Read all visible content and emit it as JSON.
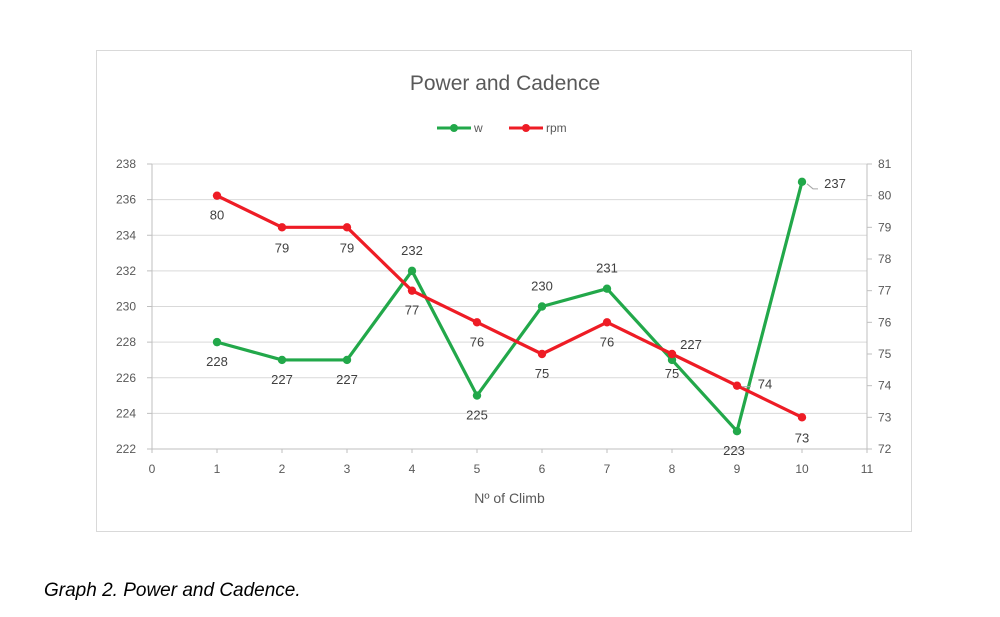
{
  "caption": "Graph 2. Power and Cadence.",
  "chart_data": {
    "type": "line",
    "title": "Power and Cadence",
    "xlabel": "Nº of Climb",
    "ylabel": "",
    "y2label": "",
    "xlim": [
      0,
      11
    ],
    "xticks": [
      0,
      1,
      2,
      3,
      4,
      5,
      6,
      7,
      8,
      9,
      10,
      11
    ],
    "ylim": [
      222,
      238
    ],
    "yticks": [
      222,
      224,
      226,
      228,
      230,
      232,
      234,
      236,
      238
    ],
    "y2lim": [
      72,
      81
    ],
    "y2ticks": [
      72,
      73,
      74,
      75,
      76,
      77,
      78,
      79,
      80,
      81
    ],
    "grid": "horizontal",
    "legend_position": "top",
    "x": [
      1,
      2,
      3,
      4,
      5,
      6,
      7,
      8,
      9,
      10
    ],
    "series": [
      {
        "name": "w",
        "axis": "left",
        "color": "#22a84a",
        "values": [
          228,
          227,
          227,
          232,
          225,
          230,
          231,
          227,
          223,
          237
        ],
        "labels": [
          "228",
          "227",
          "227",
          "232",
          "225",
          "230",
          "231",
          "227",
          "223",
          "237"
        ]
      },
      {
        "name": "rpm",
        "axis": "right",
        "color": "#ee1c25",
        "values": [
          80,
          79,
          79,
          77,
          76,
          75,
          76,
          75,
          74,
          73
        ],
        "labels": [
          "80",
          "79",
          "79",
          "77",
          "76",
          "75",
          "76",
          "75",
          "74",
          "73"
        ]
      }
    ]
  }
}
